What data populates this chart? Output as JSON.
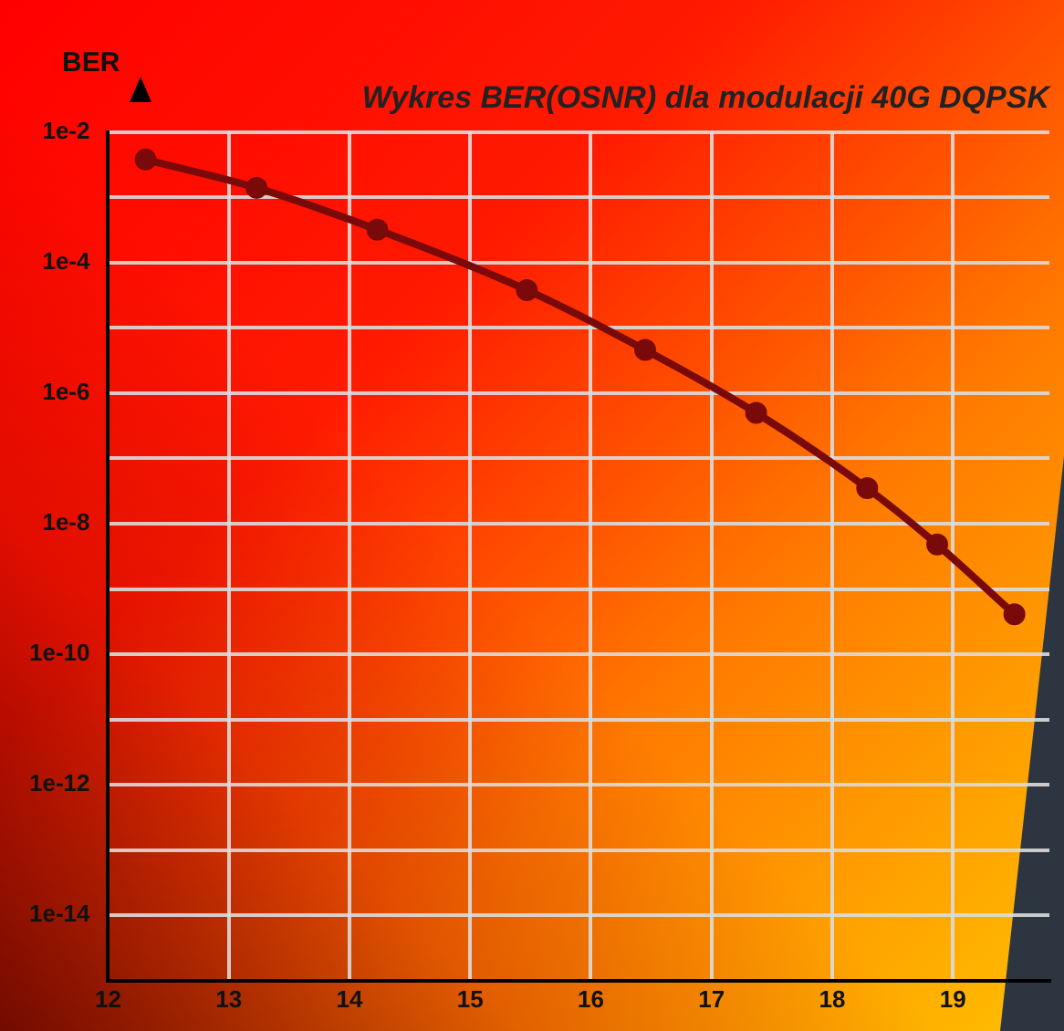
{
  "chart_data": {
    "type": "line",
    "title": "Wykres BER(OSNR) dla modulacji 40G DQPSK",
    "ylabel": "BER",
    "x": [
      12.31,
      13.23,
      14.23,
      15.47,
      16.45,
      17.37,
      18.29,
      18.87,
      19.51
    ],
    "series": [
      {
        "color": "#7a0a0a",
        "values": [
          0.0038,
          0.0014,
          0.00032,
          3.8e-05,
          4.6e-06,
          5e-07,
          3.5e-08,
          4.8e-09,
          4.1e-10
        ]
      }
    ],
    "xlim": [
      12,
      19.8
    ],
    "xticks": [
      12,
      13,
      14,
      15,
      16,
      17,
      18,
      19
    ],
    "ylim": [
      1e-15,
      0.01
    ],
    "yticks": [
      {
        "value": 1e-15,
        "label": null
      },
      {
        "value": 1e-14,
        "label": "1e-14"
      },
      {
        "value": 1e-13,
        "label": null
      },
      {
        "value": 1e-12,
        "label": "1e-12"
      },
      {
        "value": 1e-11,
        "label": null
      },
      {
        "value": 1e-10,
        "label": "1e-10"
      },
      {
        "value": 1e-09,
        "label": null
      },
      {
        "value": 1e-08,
        "label": "1e-8"
      },
      {
        "value": 1e-07,
        "label": null
      },
      {
        "value": 1e-06,
        "label": "1e-6"
      },
      {
        "value": 1e-05,
        "label": null
      },
      {
        "value": 0.0001,
        "label": "1e-4"
      },
      {
        "value": 0.001,
        "label": null
      },
      {
        "value": 0.01,
        "label": "1e-2"
      }
    ],
    "log": "y",
    "grid": true,
    "legend": false,
    "marker": "circle",
    "line_style": "solid"
  }
}
